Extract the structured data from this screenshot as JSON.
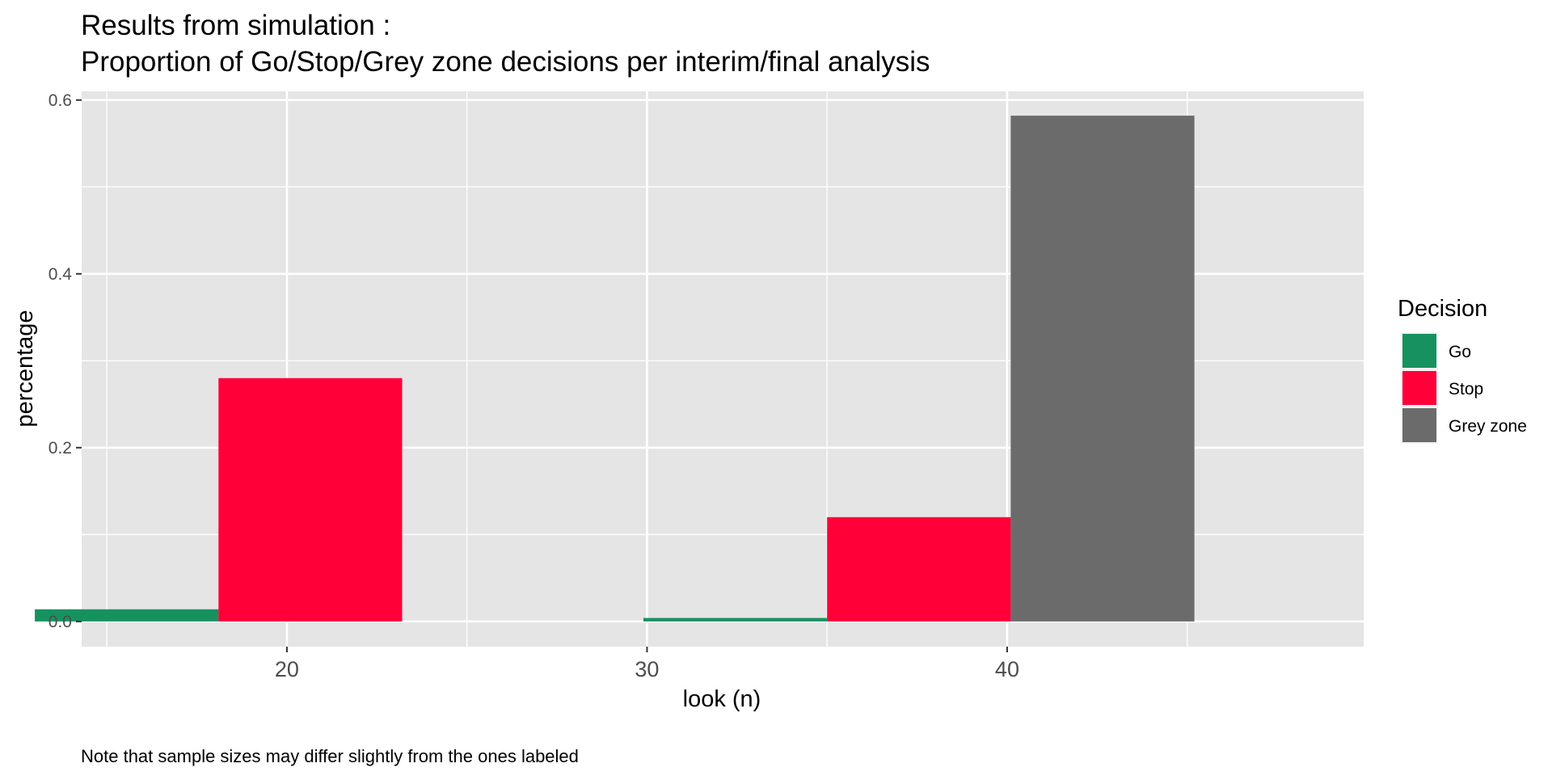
{
  "chart_data": {
    "type": "bar",
    "title_line1": "Results from simulation :",
    "title_line2": "Proportion of Go/Stop/Grey zone decisions per interim/final analysis",
    "caption": "Note that sample sizes may differ slightly from the ones labeled",
    "xlabel": "look (n)",
    "ylabel": "percentage",
    "xlim": [
      14.3,
      49.9
    ],
    "ylim": [
      -0.029,
      0.61
    ],
    "x_ticks": [
      20,
      30,
      40
    ],
    "x_tick_labels": [
      "20",
      "30",
      "40"
    ],
    "y_ticks": [
      0.0,
      0.2,
      0.4,
      0.6
    ],
    "y_tick_labels": [
      "0.0",
      "0.2",
      "0.4",
      "0.6"
    ],
    "grid": true,
    "legend": {
      "title": "Decision",
      "placement": "right",
      "entries": [
        {
          "name": "Go",
          "color": "#17925F"
        },
        {
          "name": "Stop",
          "color": "#FF0039"
        },
        {
          "name": "Grey zone",
          "color": "#6B6B6B"
        }
      ]
    },
    "bar_width": 5.1,
    "series": [
      {
        "name": "Go",
        "color": "#17925F",
        "points": [
          {
            "x": 15.55,
            "y": 0.014
          },
          {
            "x": 32.45,
            "y": 0.004
          }
        ]
      },
      {
        "name": "Stop",
        "color": "#FF0039",
        "points": [
          {
            "x": 20.65,
            "y": 0.28
          },
          {
            "x": 37.55,
            "y": 0.12
          }
        ]
      },
      {
        "name": "Grey zone",
        "color": "#6B6B6B",
        "points": [
          {
            "x": 42.65,
            "y": 0.582
          }
        ]
      }
    ]
  }
}
